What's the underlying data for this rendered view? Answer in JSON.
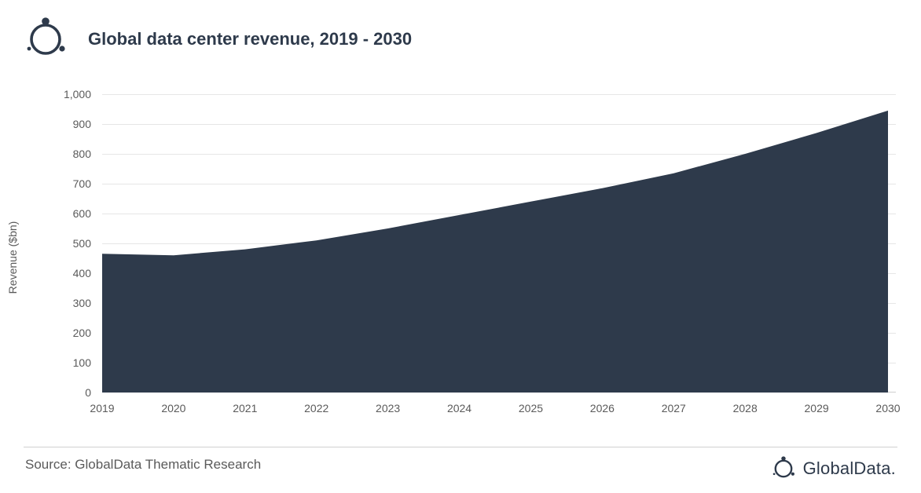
{
  "title": "Global data center revenue, 2019 - 2030",
  "chart": {
    "type": "area",
    "x_values": [
      2019,
      2020,
      2021,
      2022,
      2023,
      2024,
      2025,
      2026,
      2027,
      2028,
      2029,
      2030
    ],
    "y_values": [
      465,
      460,
      480,
      510,
      550,
      595,
      640,
      685,
      735,
      800,
      870,
      945
    ],
    "y_label": "Revenue ($bn)",
    "y_ticks": [
      0,
      100,
      200,
      300,
      400,
      500,
      600,
      700,
      800,
      900,
      1000
    ],
    "y_tick_labels": [
      "0",
      "100",
      "200",
      "300",
      "400",
      "500",
      "600",
      "700",
      "800",
      "900",
      "1,000"
    ],
    "ylim": [
      0,
      1000
    ],
    "xlim": [
      2019,
      2030
    ],
    "fill_color": "#2e3a4b",
    "grid_color": "#e6e6e6",
    "background_color": "#ffffff",
    "axis_font_size": 14,
    "title_font_size": 22,
    "y_label_font_size": 14
  },
  "footer": {
    "source": "Source: GlobalData Thematic Research",
    "brand": "GlobalData."
  },
  "logo": {
    "stroke": "#2e3a4b"
  }
}
